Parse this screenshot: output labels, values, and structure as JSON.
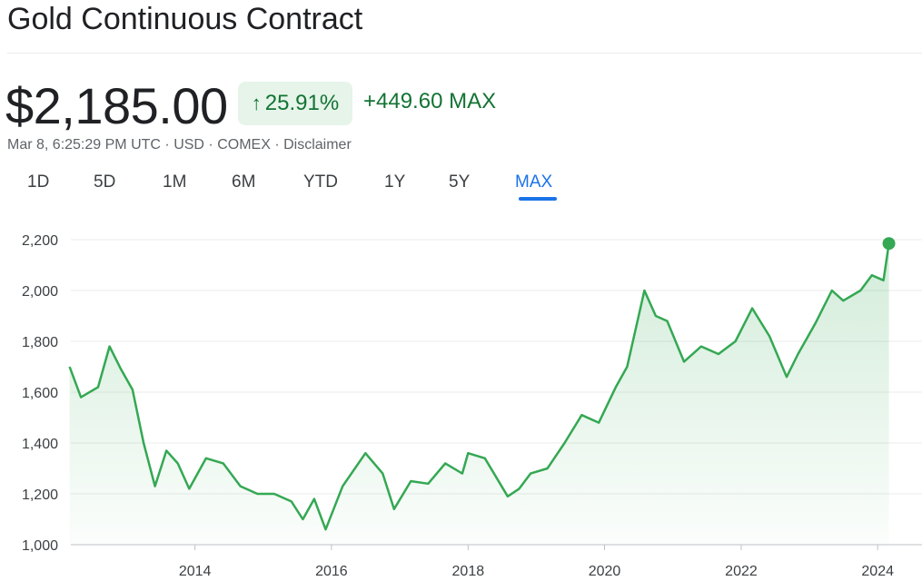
{
  "header": {
    "title": "Gold Continuous Contract",
    "price": "$2,185.00",
    "change_pct": "25.91%",
    "change_abs": "+449.60 MAX",
    "timestamp": "Mar 8, 6:25:29 PM UTC",
    "currency": "USD",
    "exchange": "COMEX",
    "disclaimer": "Disclaimer",
    "separator": "·"
  },
  "ranges": {
    "tabs": [
      "1D",
      "5D",
      "1M",
      "6M",
      "YTD",
      "1Y",
      "5Y",
      "MAX"
    ],
    "active": "MAX"
  },
  "colors": {
    "line": "#34a853",
    "accent": "#1a73e8",
    "positive": "#137333",
    "positive_bg": "#e6f4ea"
  },
  "chart_data": {
    "type": "area",
    "title": "",
    "xlabel": "",
    "ylabel": "",
    "xlim": [
      "2012-03-08",
      "2024-03-08"
    ],
    "ylim": [
      1000,
      2200
    ],
    "x_ticks": [
      "2014",
      "2016",
      "2018",
      "2020",
      "2022",
      "2024"
    ],
    "y_ticks": [
      "1,000",
      "1,200",
      "1,400",
      "1,600",
      "1,800",
      "2,000",
      "2,200"
    ],
    "grid": "horizontal",
    "series": [
      {
        "x": [
          "2012-03",
          "2012-05",
          "2012-08",
          "2012-10",
          "2012-12",
          "2013-02",
          "2013-04",
          "2013-06",
          "2013-08",
          "2013-10",
          "2013-12",
          "2014-03",
          "2014-06",
          "2014-09",
          "2014-12",
          "2015-03",
          "2015-06",
          "2015-08",
          "2015-10",
          "2015-12",
          "2016-03",
          "2016-07",
          "2016-10",
          "2016-12",
          "2017-03",
          "2017-06",
          "2017-09",
          "2017-12",
          "2018-01",
          "2018-04",
          "2018-08",
          "2018-10",
          "2018-12",
          "2019-03",
          "2019-06",
          "2019-09",
          "2019-12",
          "2020-03",
          "2020-05",
          "2020-08",
          "2020-10",
          "2020-12",
          "2021-03",
          "2021-06",
          "2021-09",
          "2021-12",
          "2022-03",
          "2022-06",
          "2022-09",
          "2022-11",
          "2023-02",
          "2023-05",
          "2023-07",
          "2023-10",
          "2023-12",
          "2024-02",
          "2024-03"
        ],
        "values": [
          1700,
          1580,
          1620,
          1780,
          1690,
          1610,
          1400,
          1230,
          1370,
          1320,
          1220,
          1340,
          1320,
          1230,
          1200,
          1200,
          1170,
          1100,
          1180,
          1060,
          1230,
          1360,
          1280,
          1140,
          1250,
          1240,
          1320,
          1280,
          1360,
          1340,
          1190,
          1220,
          1280,
          1300,
          1400,
          1510,
          1480,
          1620,
          1700,
          2000,
          1900,
          1880,
          1720,
          1780,
          1750,
          1800,
          1930,
          1820,
          1660,
          1750,
          1870,
          2000,
          1960,
          2000,
          2060,
          2040,
          2185
        ]
      }
    ]
  }
}
